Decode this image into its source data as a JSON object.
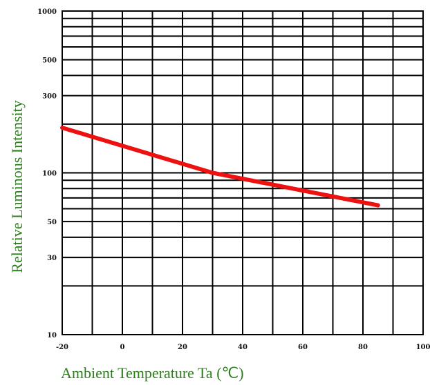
{
  "chart_data": {
    "type": "line",
    "xlabel": "Ambient Temperature Ta (℃)",
    "ylabel": "Relative Luminous Intensity",
    "x_scale": "linear",
    "y_scale": "log",
    "xlim": [
      -20,
      100
    ],
    "ylim": [
      10,
      1000
    ],
    "x_ticks": [
      -20,
      0,
      20,
      40,
      60,
      80,
      100
    ],
    "x_tick_labels": [
      "-20",
      "0",
      "20",
      "40",
      "60",
      "80",
      "100"
    ],
    "y_tick_labels": [
      {
        "value": 10,
        "label": "10"
      },
      {
        "value": 30,
        "label": "30"
      },
      {
        "value": 50,
        "label": "50"
      },
      {
        "value": 100,
        "label": "100"
      },
      {
        "value": 300,
        "label": "300"
      },
      {
        "value": 500,
        "label": "500"
      },
      {
        "value": 1000,
        "label": "1000"
      }
    ],
    "x_gridlines": [
      -20,
      -10,
      0,
      10,
      20,
      30,
      40,
      50,
      60,
      70,
      80,
      90,
      100
    ],
    "y_gridlines": [
      20,
      30,
      40,
      50,
      60,
      70,
      80,
      90,
      100,
      200,
      300,
      400,
      500,
      600,
      700,
      800,
      900
    ],
    "grid": true,
    "series": [
      {
        "x": [
          -20,
          30,
          85
        ],
        "y": [
          190,
          100,
          63
        ],
        "color": "#ee1111"
      }
    ],
    "colors": {
      "grid": "#000000",
      "axis_title": "#2e7d1e",
      "line": "#ee1111"
    }
  }
}
